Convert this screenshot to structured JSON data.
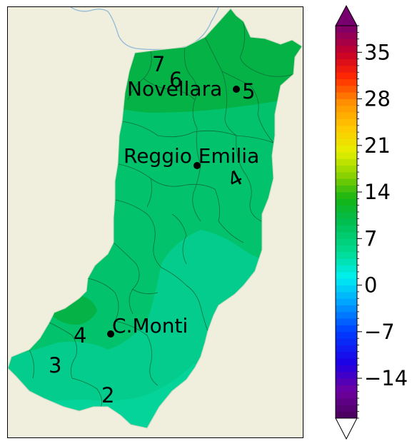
{
  "colors": {
    "land": "#f0eedc",
    "region_light": "#04cc8c",
    "region_mid": "#03c26c",
    "region_dark": "#04b246",
    "border": "#0a6f3a",
    "river": "#8fb9d9"
  },
  "cities": [
    {
      "name": "Novellara"
    },
    {
      "name": "Reggio Emilia"
    },
    {
      "name": "C.Monti"
    }
  ],
  "contour_labels": [
    "7",
    "6",
    "5",
    "4",
    "4",
    "3",
    "2"
  ],
  "colorbar": {
    "tick_labels": [
      "35",
      "28",
      "21",
      "14",
      "7",
      "0",
      "−7",
      "−14"
    ],
    "tick_values": [
      35,
      28,
      21,
      14,
      7,
      0,
      -7,
      -14
    ],
    "min": -20,
    "max": 39,
    "extend": "both"
  }
}
